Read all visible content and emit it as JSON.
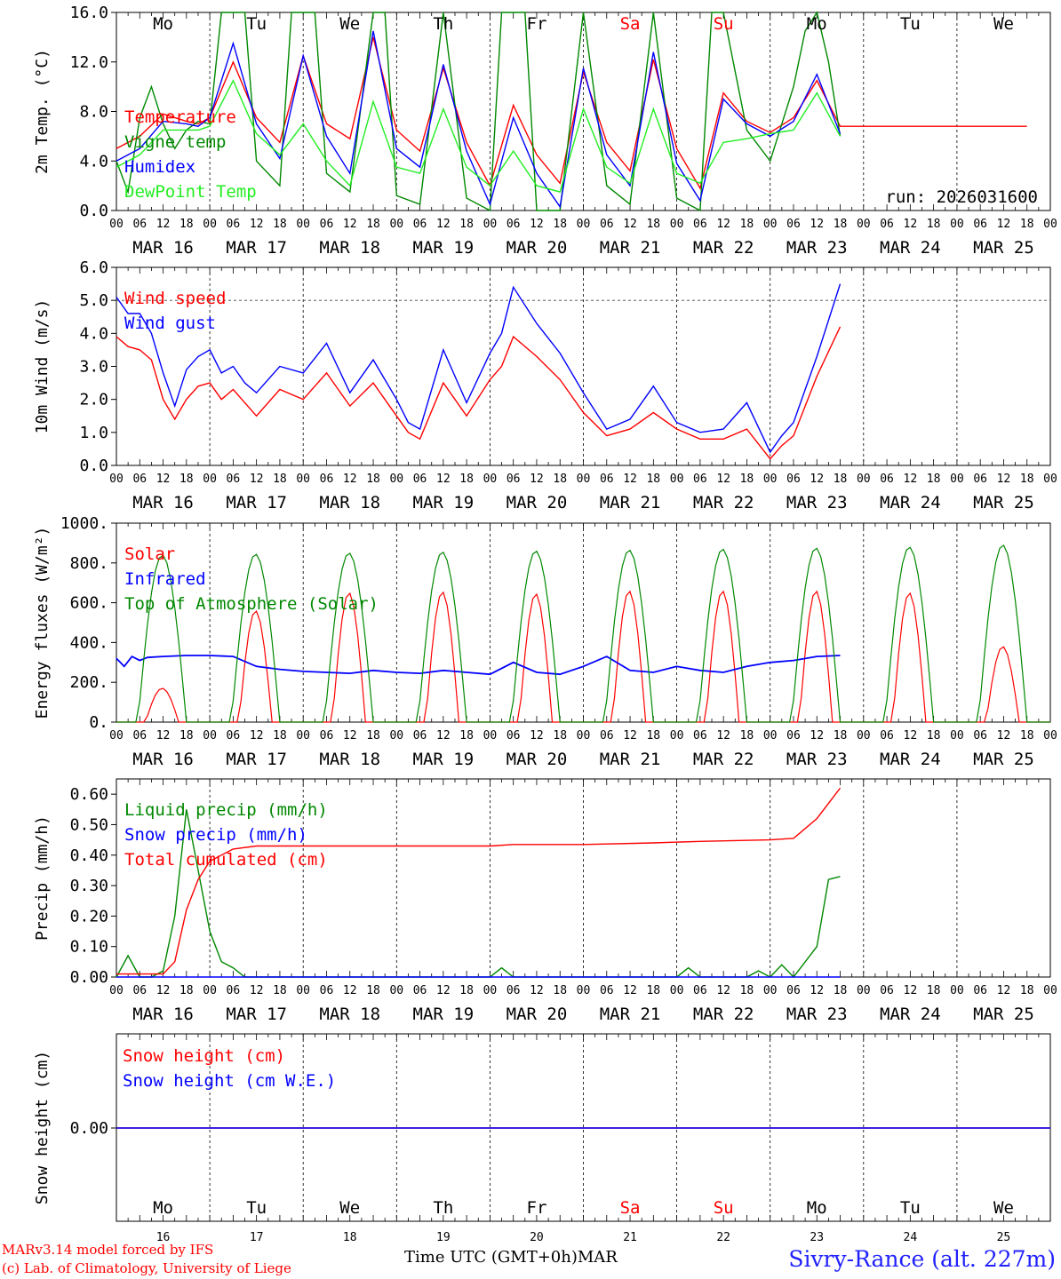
{
  "chart_data": [
    {
      "type": "line",
      "ylabel": "2m Temp. (°C)",
      "ylim": [
        0,
        16
      ],
      "yticks": [
        "0.0",
        "4.0",
        "8.0",
        "12.0",
        "16.0"
      ],
      "hourly_ticks": [
        "00",
        "06",
        "12",
        "18"
      ],
      "date_labels": [
        "MAR 16",
        "MAR 17",
        "MAR 18",
        "MAR 19",
        "MAR 20",
        "MAR 21",
        "MAR 22",
        "MAR 23",
        "MAR 24",
        "MAR 25"
      ],
      "day_labels": [
        {
          "t": "Mo",
          "c": "#000000"
        },
        {
          "t": "Tu",
          "c": "#000000"
        },
        {
          "t": "We",
          "c": "#000000"
        },
        {
          "t": "Th",
          "c": "#000000"
        },
        {
          "t": "Fr",
          "c": "#000000"
        },
        {
          "t": "Sa",
          "c": "#ff0000"
        },
        {
          "t": "Su",
          "c": "#ff0000"
        },
        {
          "t": "Mo",
          "c": "#000000"
        },
        {
          "t": "Tu",
          "c": "#000000"
        },
        {
          "t": "We",
          "c": "#000000"
        }
      ],
      "annotation": "run: 2026031600",
      "x_unit": "hours since MAR 16 00 UTC",
      "series": [
        {
          "name": "Temperature",
          "color": "#ff0000",
          "x": [
            0,
            6,
            12,
            18,
            21,
            24,
            30,
            36,
            42,
            48,
            54,
            60,
            66,
            72,
            78,
            84,
            90,
            96,
            102,
            108,
            114,
            120,
            126,
            132,
            138,
            144,
            150,
            156,
            162,
            168,
            174,
            180,
            186,
            192,
            198,
            204,
            210,
            216,
            222,
            228,
            234
          ],
          "y": [
            5.0,
            6.0,
            7.8,
            7.2,
            7.0,
            7.5,
            12.0,
            7.5,
            5.5,
            12.5,
            7.0,
            5.8,
            14.0,
            6.5,
            4.8,
            11.5,
            5.5,
            2.0,
            8.5,
            4.5,
            2.2,
            11.2,
            5.5,
            3.2,
            12.2,
            5.0,
            1.8,
            9.5,
            7.2,
            6.3,
            7.5,
            10.5,
            6.8,
            6.8,
            6.8,
            6.8,
            6.8,
            6.8,
            6.8,
            6.8,
            6.8
          ]
        },
        {
          "name": "Vigne temp",
          "color": "#008800",
          "x": [
            0,
            3,
            6,
            9,
            12,
            15,
            18,
            21,
            24,
            27,
            30,
            33,
            36,
            42,
            45,
            48,
            51,
            54,
            60,
            66,
            69,
            72,
            78,
            84,
            90,
            96,
            99,
            102,
            105,
            108,
            114,
            120,
            126,
            132,
            138,
            144,
            150,
            153,
            156,
            162,
            168,
            174,
            177,
            180,
            183,
            186
          ],
          "y": [
            4.0,
            1.5,
            7.5,
            10.0,
            7.0,
            5.0,
            6.5,
            7.2,
            7.0,
            16.0,
            16.0,
            16.0,
            4.0,
            2.0,
            16.0,
            16.0,
            16.0,
            3.0,
            1.5,
            16.0,
            16.0,
            1.2,
            0.5,
            16.0,
            1.0,
            0.0,
            16.0,
            16.0,
            16.0,
            0.0,
            0.0,
            16.0,
            2.0,
            0.5,
            16.0,
            1.0,
            0.0,
            16.0,
            16.0,
            6.5,
            4.0,
            10.0,
            14.5,
            16.0,
            12.0,
            6.0
          ]
        },
        {
          "name": "Humidex",
          "color": "#0000ff",
          "x": [
            0,
            6,
            12,
            18,
            21,
            24,
            30,
            36,
            42,
            48,
            54,
            60,
            66,
            72,
            78,
            84,
            90,
            96,
            102,
            108,
            114,
            120,
            126,
            132,
            138,
            144,
            150,
            156,
            162,
            168,
            174,
            180,
            186
          ],
          "y": [
            4.0,
            5.0,
            7.2,
            7.0,
            6.8,
            7.5,
            13.5,
            7.0,
            4.2,
            12.5,
            6.0,
            3.0,
            14.5,
            5.0,
            3.5,
            11.8,
            4.8,
            0.5,
            7.5,
            3.0,
            0.3,
            11.5,
            4.5,
            2.0,
            12.8,
            3.8,
            0.8,
            9.0,
            7.0,
            6.0,
            7.2,
            11.0,
            6.2
          ]
        },
        {
          "name": "DewPoint Temp",
          "color": "#22ee22",
          "x": [
            0,
            6,
            12,
            18,
            21,
            24,
            30,
            36,
            42,
            48,
            54,
            60,
            66,
            72,
            78,
            84,
            90,
            96,
            102,
            108,
            114,
            120,
            126,
            132,
            138,
            144,
            150,
            156,
            162,
            168,
            174,
            180,
            186
          ],
          "y": [
            3.5,
            4.5,
            6.5,
            6.5,
            6.5,
            6.8,
            10.5,
            6.2,
            4.5,
            7.0,
            4.0,
            2.0,
            8.8,
            3.5,
            3.0,
            8.2,
            3.5,
            2.0,
            4.8,
            2.0,
            1.5,
            8.2,
            3.5,
            2.2,
            8.2,
            3.0,
            2.2,
            5.5,
            5.8,
            6.2,
            6.5,
            9.5,
            6.0
          ]
        }
      ]
    },
    {
      "type": "line",
      "ylabel": "10m Wind (m/s)",
      "ylim": [
        0,
        6
      ],
      "yticks": [
        "0.0",
        "1.0",
        "2.0",
        "3.0",
        "4.0",
        "5.0",
        "6.0"
      ],
      "date_labels": [
        "MAR 16",
        "MAR 17",
        "MAR 18",
        "MAR 19",
        "MAR 20",
        "MAR 21",
        "MAR 22",
        "MAR 23",
        "MAR 24",
        "MAR 25"
      ],
      "reference_line": 5.0,
      "series": [
        {
          "name": "Wind speed",
          "color": "#ff0000",
          "x": [
            0,
            3,
            6,
            9,
            12,
            15,
            18,
            21,
            24,
            27,
            30,
            33,
            36,
            42,
            48,
            54,
            60,
            66,
            72,
            75,
            78,
            84,
            90,
            96,
            99,
            102,
            108,
            114,
            120,
            126,
            132,
            138,
            144,
            150,
            156,
            162,
            168,
            171,
            174,
            180,
            186
          ],
          "y": [
            3.9,
            3.6,
            3.5,
            3.2,
            2.0,
            1.4,
            2.0,
            2.4,
            2.5,
            2.0,
            2.3,
            1.9,
            1.5,
            2.3,
            2.0,
            2.8,
            1.8,
            2.5,
            1.5,
            1.0,
            0.8,
            2.5,
            1.5,
            2.6,
            3.0,
            3.9,
            3.3,
            2.6,
            1.6,
            0.9,
            1.1,
            1.6,
            1.1,
            0.8,
            0.8,
            1.1,
            0.2,
            0.6,
            0.9,
            2.7,
            4.2
          ]
        },
        {
          "name": "Wind gust",
          "color": "#0000ff",
          "x": [
            0,
            3,
            6,
            9,
            12,
            15,
            18,
            21,
            24,
            27,
            30,
            33,
            36,
            42,
            48,
            54,
            60,
            66,
            72,
            75,
            78,
            84,
            90,
            96,
            99,
            102,
            108,
            114,
            120,
            126,
            132,
            138,
            144,
            150,
            156,
            162,
            168,
            171,
            174,
            180,
            186
          ],
          "y": [
            5.1,
            4.6,
            4.6,
            4.0,
            2.8,
            1.8,
            2.9,
            3.3,
            3.5,
            2.8,
            3.0,
            2.5,
            2.2,
            3.0,
            2.8,
            3.7,
            2.2,
            3.2,
            2.0,
            1.3,
            1.1,
            3.5,
            1.9,
            3.4,
            4.0,
            5.4,
            4.3,
            3.4,
            2.2,
            1.1,
            1.4,
            2.4,
            1.3,
            1.0,
            1.1,
            1.9,
            0.4,
            0.9,
            1.3,
            3.3,
            5.5
          ]
        }
      ]
    },
    {
      "type": "line",
      "ylabel": "Energy fluxes (W/m²)",
      "ylim": [
        0,
        1000
      ],
      "yticks": [
        "0.",
        "200.",
        "400.",
        "600.",
        "800.",
        "1000."
      ],
      "date_labels": [
        "MAR 16",
        "MAR 17",
        "MAR 18",
        "MAR 19",
        "MAR 20",
        "MAR 21",
        "MAR 22",
        "MAR 23",
        "MAR 24",
        "MAR 25"
      ],
      "series": [
        {
          "name": "Solar",
          "color": "#ff0000",
          "peaks": [
            170,
            560,
            650,
            655,
            645,
            660,
            660,
            660,
            650,
            380
          ]
        },
        {
          "name": "Infrared",
          "color": "#0000ff",
          "x": [
            0,
            2,
            4,
            6,
            8,
            12,
            18,
            24,
            30,
            36,
            42,
            48,
            54,
            60,
            66,
            72,
            78,
            84,
            90,
            96,
            102,
            108,
            114,
            120,
            126,
            132,
            138,
            144,
            150,
            156,
            162,
            168,
            174,
            180,
            186
          ],
          "y": [
            320,
            280,
            330,
            310,
            325,
            330,
            335,
            335,
            330,
            280,
            265,
            255,
            250,
            245,
            260,
            250,
            245,
            260,
            250,
            240,
            300,
            250,
            240,
            280,
            330,
            260,
            250,
            280,
            260,
            250,
            280,
            300,
            310,
            330,
            335
          ]
        },
        {
          "name": "Top of Atmosphere (Solar)",
          "color": "#008800",
          "peaks": [
            840,
            845,
            850,
            855,
            860,
            865,
            870,
            875,
            880,
            890
          ]
        }
      ]
    },
    {
      "type": "line",
      "ylabel": "Precip (mm/h)",
      "ylim": [
        0,
        0.65
      ],
      "yticks": [
        "0.00",
        "0.10",
        "0.20",
        "0.30",
        "0.40",
        "0.50",
        "0.60"
      ],
      "date_labels": [
        "MAR 16",
        "MAR 17",
        "MAR 18",
        "MAR 19",
        "MAR 20",
        "MAR 21",
        "MAR 22",
        "MAR 23",
        "MAR 24",
        "MAR 25"
      ],
      "series": [
        {
          "name": "Liquid precip (mm/h)",
          "color": "#008800",
          "x": [
            0,
            3,
            6,
            9,
            12,
            15,
            18,
            21,
            24,
            27,
            30,
            33,
            36,
            96,
            99,
            102,
            144,
            147,
            150,
            162,
            165,
            168,
            171,
            174,
            180,
            183,
            186
          ],
          "y": [
            0,
            0.07,
            0,
            0,
            0.02,
            0.2,
            0.55,
            0.35,
            0.15,
            0.05,
            0.03,
            0.0,
            0,
            0,
            0.03,
            0,
            0,
            0.03,
            0,
            0,
            0.02,
            0,
            0.04,
            0,
            0.1,
            0.32,
            0.33
          ]
        },
        {
          "name": "Snow precip (mm/h)",
          "color": "#0000ff",
          "x": [
            0,
            186
          ],
          "y": [
            0,
            0
          ]
        },
        {
          "name": "Total cumulated (cm)",
          "color": "#ff0000",
          "x": [
            0,
            12,
            15,
            18,
            21,
            24,
            30,
            36,
            96,
            102,
            120,
            138,
            150,
            168,
            174,
            180,
            186
          ],
          "y": [
            0.01,
            0.01,
            0.05,
            0.22,
            0.32,
            0.38,
            0.42,
            0.43,
            0.43,
            0.435,
            0.435,
            0.44,
            0.445,
            0.45,
            0.455,
            0.52,
            0.62
          ]
        }
      ]
    },
    {
      "type": "line",
      "ylabel": "Snow height (cm)",
      "yticks": [
        "0.00"
      ],
      "day_labels": [
        {
          "t": "Mo",
          "c": "#000000"
        },
        {
          "t": "Tu",
          "c": "#000000"
        },
        {
          "t": "We",
          "c": "#000000"
        },
        {
          "t": "Th",
          "c": "#000000"
        },
        {
          "t": "Fr",
          "c": "#000000"
        },
        {
          "t": "Sa",
          "c": "#ff0000"
        },
        {
          "t": "Su",
          "c": "#ff0000"
        },
        {
          "t": "Mo",
          "c": "#000000"
        },
        {
          "t": "Tu",
          "c": "#000000"
        },
        {
          "t": "We",
          "c": "#000000"
        }
      ],
      "date_numbers": [
        "16",
        "17",
        "18",
        "19",
        "20",
        "21",
        "22",
        "23",
        "24",
        "25"
      ],
      "series": [
        {
          "name": "Snow height (cm)",
          "color": "#ff0000",
          "x": [
            0,
            240
          ],
          "y": [
            0,
            0
          ]
        },
        {
          "name": "Snow height (cm W.E.)",
          "color": "#0000ff",
          "x": [
            0,
            240
          ],
          "y": [
            0,
            0
          ]
        }
      ]
    }
  ],
  "footer": {
    "model": "MARv3.14 model forced by IFS",
    "lab": "(c) Lab. of Climatology, University of Liege",
    "xlabel": "Time UTC (GMT+0h)",
    "month": "MAR",
    "station": "Sivry-Rance (alt. 227m)"
  }
}
